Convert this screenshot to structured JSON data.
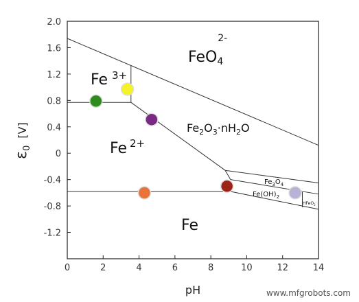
{
  "chart_data": {
    "type": "pourbaix",
    "xlabel": "pH",
    "ylabel_symbol": "ε",
    "ylabel_subscript": "0",
    "ylabel_unit": "[V]",
    "xlim": [
      0,
      14
    ],
    "ylim": [
      -1.6,
      2.0
    ],
    "xticks": [
      0,
      2,
      4,
      6,
      8,
      10,
      12,
      14
    ],
    "yticks": [
      2.0,
      1.6,
      1.2,
      0.8,
      0.4,
      0,
      -0.4,
      -0.8,
      -1.2
    ],
    "ytick_labels": [
      "2.0",
      "1.6",
      "1.2",
      "0.8",
      "0.4",
      "0",
      "-0.4",
      "-0.8",
      "-1.2"
    ],
    "grid": false,
    "boundaries": [
      {
        "x": [
          0,
          14
        ],
        "y": [
          1.74,
          0.12
        ]
      },
      {
        "x": [
          0,
          3.55
        ],
        "y": [
          0.77,
          0.77
        ]
      },
      {
        "x": [
          3.55,
          3.55
        ],
        "y": [
          0.77,
          1.33
        ]
      },
      {
        "x": [
          3.55,
          8.8
        ],
        "y": [
          0.77,
          -0.26
        ]
      },
      {
        "x": [
          8.8,
          14
        ],
        "y": [
          -0.26,
          -0.45
        ]
      },
      {
        "x": [
          8.8,
          9.1
        ],
        "y": [
          -0.26,
          -0.4
        ]
      },
      {
        "x": [
          9.1,
          14
        ],
        "y": [
          -0.4,
          -0.62
        ]
      },
      {
        "x": [
          0,
          9.1
        ],
        "y": [
          -0.58,
          -0.58
        ]
      },
      {
        "x": [
          9.1,
          14
        ],
        "y": [
          -0.58,
          -0.85
        ]
      },
      {
        "x": [
          13.1,
          13.1
        ],
        "y": [
          -0.59,
          -0.82
        ]
      }
    ],
    "points": [
      {
        "x": 1.6,
        "y": 0.79,
        "color": "#2e8b1e"
      },
      {
        "x": 3.35,
        "y": 0.97,
        "color": "#f5f229"
      },
      {
        "x": 4.7,
        "y": 0.51,
        "color": "#7a2a82"
      },
      {
        "x": 4.3,
        "y": -0.6,
        "color": "#e8743a"
      },
      {
        "x": 8.9,
        "y": -0.5,
        "color": "#9b2318"
      },
      {
        "x": 12.7,
        "y": -0.6,
        "color": "#b8b2d6"
      }
    ],
    "regions": {
      "feo4": {
        "base": "FeO",
        "sub": "4",
        "sup": "2-"
      },
      "fe3": {
        "base": "Fe",
        "sup": "3+"
      },
      "fe2o3": {
        "p1": "Fe",
        "s1": "2",
        "p2": "O",
        "s2": "3",
        "p3": "·nH",
        "s3": "2",
        "p4": "O"
      },
      "fe2": {
        "base": "Fe",
        "sup": "2+"
      },
      "fe3o4": {
        "p1": "Fe",
        "s1": "3",
        "p2": "O",
        "s2": "4"
      },
      "feoh2": {
        "p1": "Fe(OH)",
        "s1": "2"
      },
      "hfeo2": {
        "p1": "HFeO",
        "s1": "2",
        "sup": "-"
      },
      "fe": {
        "base": "Fe"
      }
    }
  },
  "footer": {
    "watermark": "www.mfgrobots.com"
  }
}
